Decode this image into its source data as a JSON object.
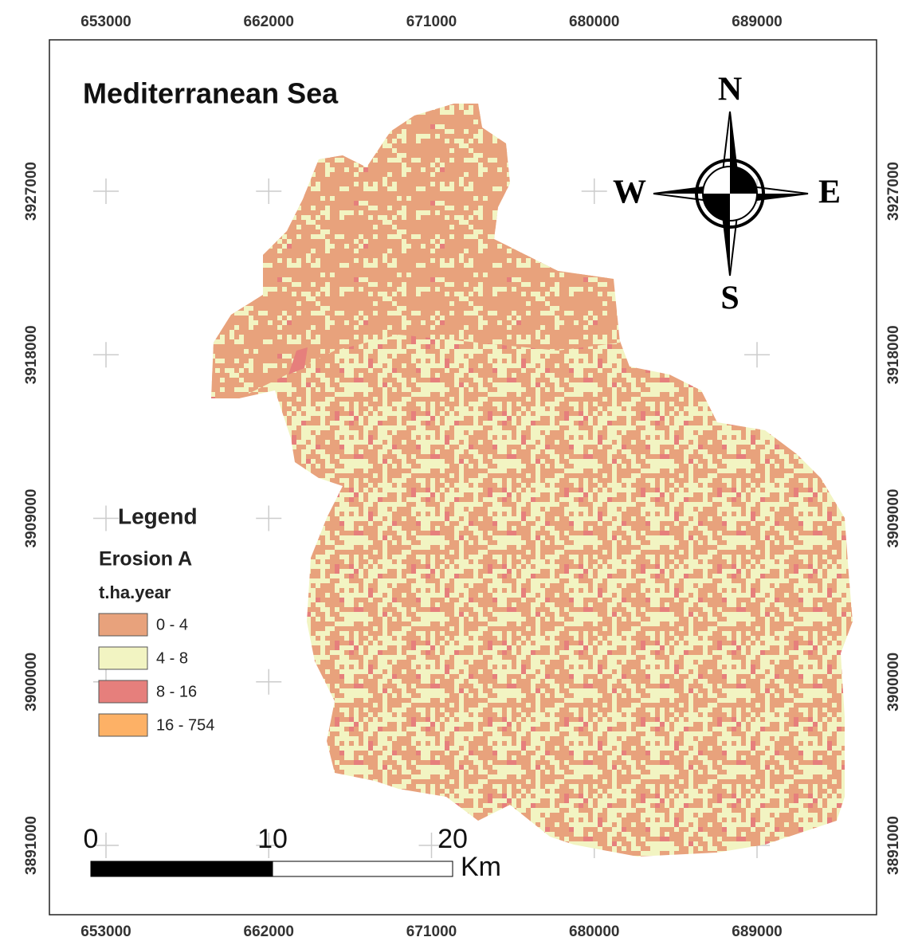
{
  "title": "Mediterranean Sea",
  "compass": {
    "n": "N",
    "s": "S",
    "e": "E",
    "w": "W"
  },
  "legend": {
    "title": "Legend",
    "subtitle": "Erosion A",
    "unit": "t.ha.year",
    "classes": [
      {
        "label": "0 - 4",
        "color": "#e8a27c"
      },
      {
        "label": "4 - 8",
        "color": "#f2f4c2"
      },
      {
        "label": "8 - 16",
        "color": "#e67f7c"
      },
      {
        "label": "16 - 754",
        "color": "#fdb166"
      }
    ]
  },
  "x_ticks": [
    653000,
    662000,
    671000,
    680000,
    689000
  ],
  "y_ticks": [
    3927000,
    3918000,
    3909000,
    3900000,
    3891000
  ],
  "scale_bar": {
    "labels": [
      0,
      10,
      20
    ],
    "unit": "Km"
  }
}
